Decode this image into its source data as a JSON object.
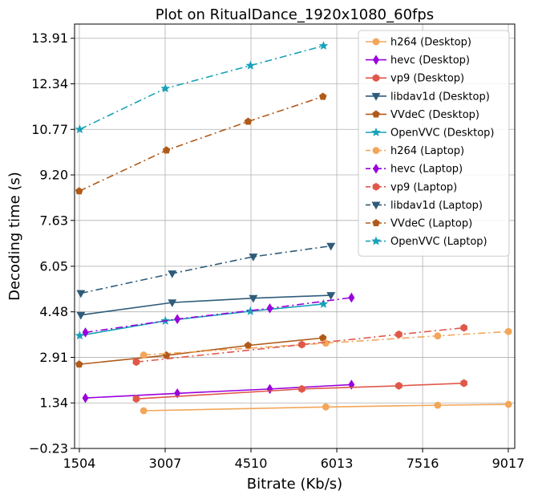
{
  "chart_data": {
    "type": "line",
    "title": "Plot on RitualDance_1920x1080_60fps",
    "xlabel": "Bitrate (Kb/s)",
    "ylabel": "Decoding time (s)",
    "xlim": [
      1420,
      9130
    ],
    "ylim": [
      -0.23,
      14.4
    ],
    "xticks": [
      1504,
      3007,
      4510,
      6013,
      7516,
      9017
    ],
    "yticks": [
      -0.23,
      1.34,
      2.91,
      4.48,
      6.05,
      7.63,
      9.2,
      10.77,
      12.34,
      13.91
    ],
    "ytick_labels": [
      "−0.23",
      "1.34",
      "2.91",
      "4.48",
      "6.05",
      "7.63",
      "9.20",
      "10.77",
      "12.34",
      "13.91"
    ],
    "grid": true,
    "legend_position": "top-right",
    "series": [
      {
        "name": "h264 (Desktop)",
        "color": "#f2a65a",
        "marker": "circle",
        "linestyle": "solid",
        "x": [
          2630,
          5820,
          7780,
          9020
        ],
        "y": [
          1.07,
          1.2,
          1.26,
          1.29
        ]
      },
      {
        "name": "hevc (Desktop)",
        "color": "#9900dd",
        "marker": "thin_diamond",
        "linestyle": "solid",
        "x": [
          1610,
          3220,
          4840,
          6270
        ],
        "y": [
          1.51,
          1.67,
          1.82,
          1.97
        ]
      },
      {
        "name": "vp9 (Desktop)",
        "color": "#e0584a",
        "marker": "hexagon",
        "linestyle": "solid",
        "x": [
          2500,
          5400,
          7100,
          8240
        ],
        "y": [
          1.48,
          1.82,
          1.93,
          2.02
        ]
      },
      {
        "name": "libdav1d (Desktop)",
        "color": "#2f5c7a",
        "marker": "triangle_down",
        "linestyle": "solid",
        "x": [
          1530,
          3130,
          4550,
          5910
        ],
        "y": [
          4.37,
          4.8,
          4.95,
          5.05
        ]
      },
      {
        "name": "VVdeC (Desktop)",
        "color": "#b05a1a",
        "marker": "pentagon",
        "linestyle": "solid",
        "x": [
          1500,
          3030,
          4460,
          5770
        ],
        "y": [
          2.67,
          2.98,
          3.32,
          3.58
        ]
      },
      {
        "name": "OpenVVC (Desktop)",
        "color": "#17a2b8",
        "marker": "star",
        "linestyle": "solid",
        "x": [
          1510,
          3010,
          4500,
          5780
        ],
        "y": [
          3.66,
          4.17,
          4.5,
          4.75
        ]
      },
      {
        "name": "h264 (Laptop)",
        "color": "#f2a65a",
        "marker": "circle",
        "linestyle": "dashdot",
        "x": [
          2630,
          5820,
          7780,
          9020
        ],
        "y": [
          2.99,
          3.4,
          3.65,
          3.8
        ]
      },
      {
        "name": "hevc (Laptop)",
        "color": "#9900dd",
        "marker": "thin_diamond",
        "linestyle": "dashdot",
        "x": [
          1610,
          3220,
          4840,
          6270
        ],
        "y": [
          3.77,
          4.23,
          4.6,
          4.97
        ]
      },
      {
        "name": "vp9 (Laptop)",
        "color": "#e0584a",
        "marker": "hexagon",
        "linestyle": "dashdot",
        "x": [
          2500,
          5400,
          7100,
          8240
        ],
        "y": [
          2.75,
          3.35,
          3.7,
          3.93
        ]
      },
      {
        "name": "libdav1d (Laptop)",
        "color": "#2f5c7a",
        "marker": "triangle_down",
        "linestyle": "dashdot",
        "x": [
          1530,
          3130,
          4550,
          5910
        ],
        "y": [
          5.12,
          5.8,
          6.38,
          6.75
        ]
      },
      {
        "name": "VVdeC (Laptop)",
        "color": "#b05a1a",
        "marker": "pentagon",
        "linestyle": "dashdot",
        "x": [
          1500,
          3030,
          4460,
          5770
        ],
        "y": [
          8.64,
          10.05,
          11.04,
          11.9
        ]
      },
      {
        "name": "OpenVVC (Laptop)",
        "color": "#17a2b8",
        "marker": "star",
        "linestyle": "dashdot",
        "x": [
          1510,
          3010,
          4500,
          5780
        ],
        "y": [
          10.77,
          12.18,
          12.97,
          13.65
        ]
      }
    ]
  }
}
